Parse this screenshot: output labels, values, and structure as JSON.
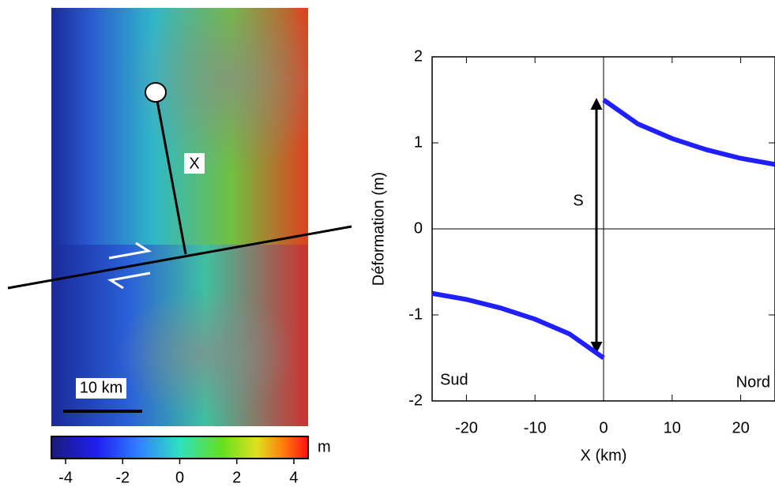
{
  "map": {
    "profile_label": "X",
    "scale_label": "10 km",
    "colorbar": {
      "unit": "m",
      "lim": [
        -4.5,
        4.5
      ],
      "ticks": [
        -4,
        -2,
        0,
        2,
        4
      ]
    }
  },
  "chart_data": {
    "type": "line",
    "xlabel": "X (km)",
    "ylabel": "Déformation (m)",
    "xlim": [
      -25,
      25
    ],
    "ylim": [
      -2,
      2
    ],
    "xticks": [
      -20,
      -10,
      0,
      10,
      20
    ],
    "yticks": [
      -2,
      -1,
      0,
      1,
      2
    ],
    "series": [
      {
        "color": "#1f1fff",
        "x": [
          -25,
          -20,
          -15,
          -10,
          -5,
          0
        ],
        "values": [
          -0.75,
          -0.82,
          -0.92,
          -1.05,
          -1.22,
          -1.5
        ]
      },
      {
        "color": "#1f1fff",
        "x": [
          0,
          5,
          10,
          15,
          20,
          25
        ],
        "values": [
          1.5,
          1.22,
          1.05,
          0.92,
          0.82,
          0.75
        ]
      }
    ],
    "annotations": [
      "S",
      "Sud",
      "Nord"
    ]
  }
}
